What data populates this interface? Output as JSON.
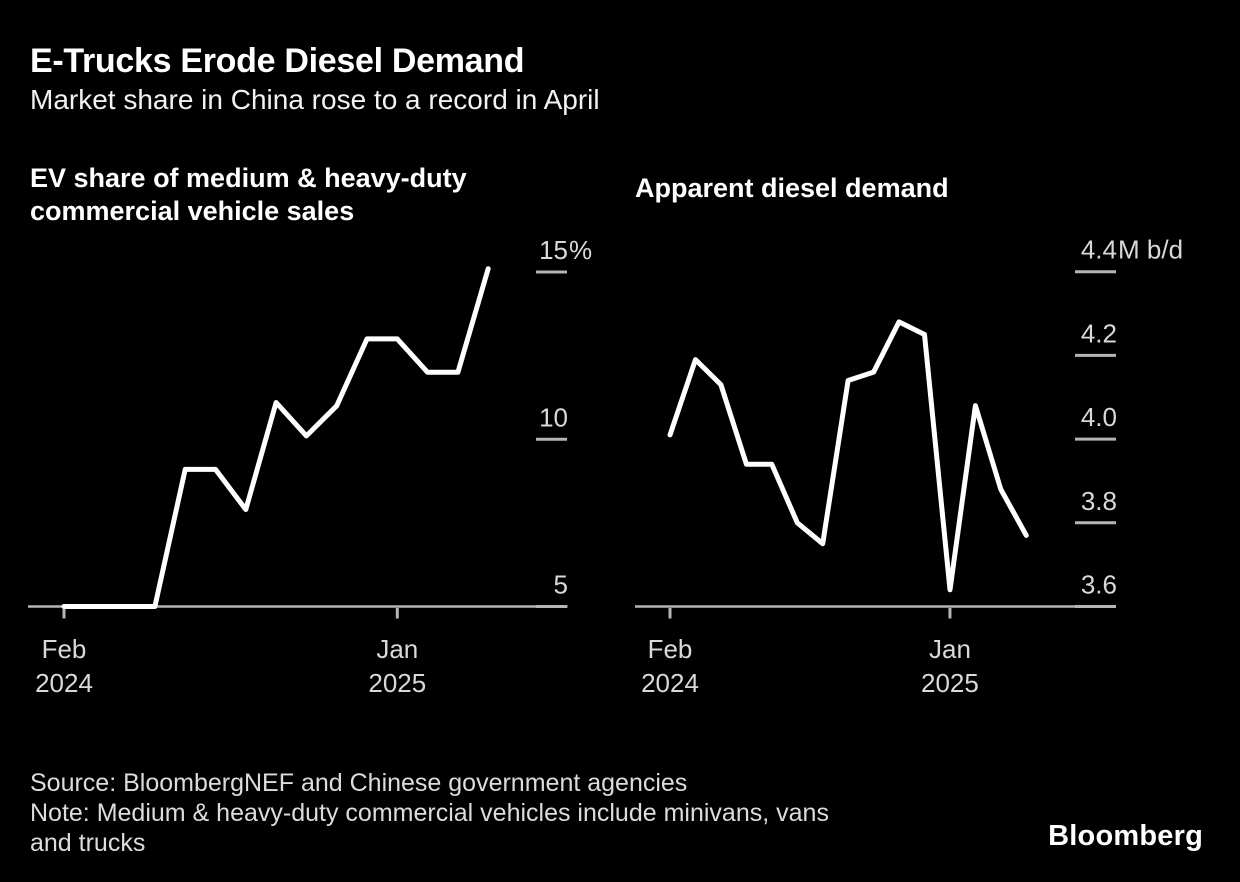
{
  "header": {
    "title": "E-Trucks Erode Diesel Demand",
    "subtitle": "Market share in China rose to a record in April"
  },
  "chart_data": [
    {
      "type": "line",
      "title": "EV share of medium & heavy-duty commercial vehicle sales",
      "title_lines": [
        "EV share of medium & heavy-duty",
        "commercial vehicle sales"
      ],
      "unit_suffix": "%",
      "categories": [
        "Feb 2024",
        "Mar 2024",
        "Apr 2024",
        "May 2024",
        "Jun 2024",
        "Jul 2024",
        "Aug 2024",
        "Sep 2024",
        "Oct 2024",
        "Nov 2024",
        "Dec 2024",
        "Jan 2025",
        "Feb 2025",
        "Mar 2025",
        "Apr 2025"
      ],
      "values": [
        5.0,
        5.0,
        5.0,
        5.0,
        9.1,
        9.1,
        7.9,
        11.1,
        10.1,
        11.0,
        13.0,
        13.0,
        12.0,
        12.0,
        15.1
      ],
      "ylim": [
        5,
        15.5
      ],
      "yticks": [
        5,
        10,
        15
      ],
      "ytick_labels": [
        "5",
        "10",
        "15"
      ],
      "xticks": [
        {
          "index": 0,
          "lines": [
            "Feb",
            "2024"
          ]
        },
        {
          "index": 11,
          "lines": [
            "Jan",
            "2025"
          ]
        }
      ],
      "grid": false,
      "legend": null,
      "line_color": "#ffffff"
    },
    {
      "type": "line",
      "title": "Apparent diesel demand",
      "title_lines": [
        "Apparent diesel demand"
      ],
      "unit_suffix": "M b/d",
      "categories": [
        "Feb 2024",
        "Mar 2024",
        "Apr 2024",
        "May 2024",
        "Jun 2024",
        "Jul 2024",
        "Aug 2024",
        "Sep 2024",
        "Oct 2024",
        "Nov 2024",
        "Dec 2024",
        "Jan 2025",
        "Feb 2025",
        "Mar 2025",
        "Apr 2025"
      ],
      "values": [
        4.01,
        4.19,
        4.13,
        3.94,
        3.94,
        3.8,
        3.75,
        4.14,
        4.16,
        4.28,
        4.25,
        3.64,
        4.08,
        3.88,
        3.77
      ],
      "ylim": [
        3.6,
        4.45
      ],
      "yticks": [
        3.6,
        3.8,
        4.0,
        4.2,
        4.4
      ],
      "ytick_labels": [
        "3.6",
        "3.8",
        "4.0",
        "4.2",
        "4.4"
      ],
      "xticks": [
        {
          "index": 0,
          "lines": [
            "Feb",
            "2024"
          ]
        },
        {
          "index": 11,
          "lines": [
            "Jan",
            "2025"
          ]
        }
      ],
      "grid": false,
      "legend": null,
      "line_color": "#ffffff"
    }
  ],
  "footer": {
    "source": "Source: BloombergNEF and Chinese government agencies",
    "note": "Note: Medium & heavy-duty commercial vehicles include minivans, vans and trucks",
    "note_lines": [
      "Note: Medium & heavy-duty commercial vehicles include minivans, vans",
      "and trucks"
    ],
    "brand": "Bloomberg"
  },
  "colors": {
    "background": "#000000",
    "title_text": "#ffffff",
    "tick_text": "#d9d9d9",
    "axis": "#b5b5b5",
    "series_line": "#ffffff"
  }
}
